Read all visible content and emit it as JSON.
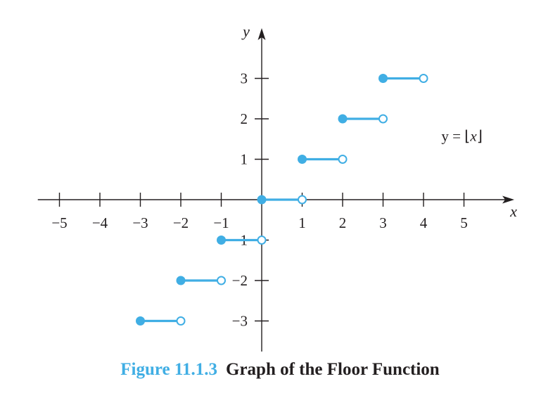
{
  "chart_data": {
    "type": "line",
    "subtype": "step-function",
    "xlabel": "x",
    "ylabel": "y",
    "xlim": [
      -5.5,
      6.2
    ],
    "ylim": [
      -3.6,
      3.9
    ],
    "x_ticks": [
      -5,
      -4,
      -3,
      -2,
      -1,
      1,
      2,
      3,
      4,
      5
    ],
    "y_ticks": [
      -3,
      -2,
      -1,
      1,
      2,
      3
    ],
    "x_tick_labels": [
      "−5",
      "−4",
      "−3",
      "−2",
      "−1",
      "1",
      "2",
      "3",
      "4",
      "5"
    ],
    "y_tick_labels": [
      "−3",
      "−2",
      "−1",
      "1",
      "2",
      "3"
    ],
    "grid": false,
    "series_color": "#40aee4",
    "segments": [
      {
        "x_start": -3,
        "x_end": -2,
        "y": -3,
        "start_closed": true,
        "end_closed": false
      },
      {
        "x_start": -2,
        "x_end": -1,
        "y": -2,
        "start_closed": true,
        "end_closed": false
      },
      {
        "x_start": -1,
        "x_end": 0,
        "y": -1,
        "start_closed": true,
        "end_closed": false
      },
      {
        "x_start": 0,
        "x_end": 1,
        "y": 0,
        "start_closed": true,
        "end_closed": false
      },
      {
        "x_start": 1,
        "x_end": 2,
        "y": 1,
        "start_closed": true,
        "end_closed": false
      },
      {
        "x_start": 2,
        "x_end": 3,
        "y": 2,
        "start_closed": true,
        "end_closed": false
      },
      {
        "x_start": 3,
        "x_end": 4,
        "y": 3,
        "start_closed": true,
        "end_closed": false
      }
    ],
    "annotation": {
      "prefix": "y = ⌊",
      "variable": "x",
      "suffix": "⌋"
    }
  },
  "caption": {
    "number": "Figure 11.1.3",
    "title": "Graph of the Floor Function"
  }
}
